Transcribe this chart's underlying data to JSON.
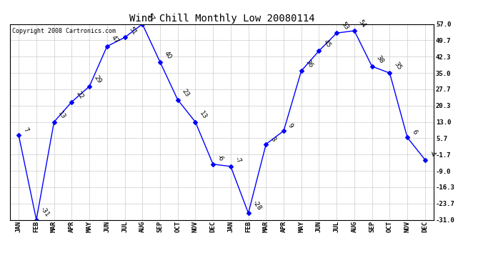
{
  "title": "Wind Chill Monthly Low 20080114",
  "copyright": "Copyright 2008 Cartronics.com",
  "months": [
    "JAN",
    "FEB",
    "MAR",
    "APR",
    "MAY",
    "JUN",
    "JUL",
    "AUG",
    "SEP",
    "OCT",
    "NOV",
    "DEC",
    "JAN",
    "FEB",
    "MAR",
    "APR",
    "MAY",
    "JUN",
    "JUL",
    "AUG",
    "SEP",
    "OCT",
    "NOV",
    "DEC"
  ],
  "values": [
    7,
    -31,
    13,
    22,
    29,
    47,
    51,
    57,
    40,
    23,
    13,
    -6,
    -7,
    -28,
    3,
    9,
    36,
    45,
    53,
    54,
    38,
    35,
    6,
    -4
  ],
  "yticks": [
    57.0,
    49.7,
    42.3,
    35.0,
    27.7,
    20.3,
    13.0,
    5.7,
    -1.7,
    -9.0,
    -16.3,
    -23.7,
    -31.0
  ],
  "ylim": [
    -31.0,
    57.0
  ],
  "line_color": "blue",
  "marker_color": "blue",
  "bg_color": "#ffffff",
  "grid_color": "#cccccc",
  "title_fontsize": 10,
  "label_fontsize": 6.5,
  "axis_label_fontsize": 6.5,
  "copyright_fontsize": 6
}
